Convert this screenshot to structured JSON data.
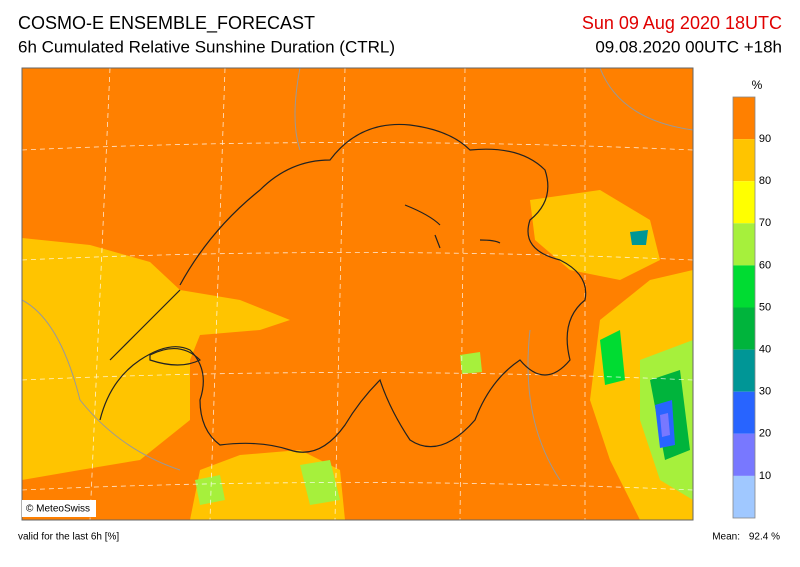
{
  "header": {
    "title": "COSMO-E ENSEMBLE_FORECAST",
    "subtitle": "6h Cumulated Relative Sunshine Duration (CTRL)",
    "valid_time": "Sun 09 Aug 2020 18UTC",
    "run": "09.08.2020 00UTC +18h"
  },
  "map": {
    "credit": "© MeteoSwiss"
  },
  "legend": {
    "unit": "%",
    "labels": [
      90,
      80,
      70,
      60,
      50,
      40,
      30,
      20,
      10
    ],
    "colors": [
      "#ff8000",
      "#ffc400",
      "#ffff00",
      "#a6f03c",
      "#00dc32",
      "#00b43c",
      "#009696",
      "#2864ff",
      "#7878ff",
      "#a0c8ff"
    ]
  },
  "footer": {
    "note": "valid for the last 6h [%]",
    "mean_label": "Mean:",
    "mean_value": "92.4 %"
  }
}
